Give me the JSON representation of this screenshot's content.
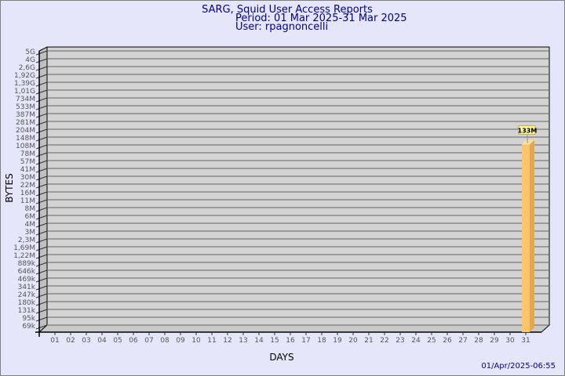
{
  "chart_data": {
    "type": "bar",
    "title": [
      "SARG, Squid User Access Reports",
      "Period: 01 Mar 2025-31 Mar 2025",
      "User: rpagnoncelli"
    ],
    "xlabel": "DAYS",
    "ylabel": "BYTES",
    "y_scale": "log",
    "ylim": [
      "69k",
      "5G"
    ],
    "y_tick_labels": [
      "5G",
      "4G",
      "2,6G",
      "1,92G",
      "1,39G",
      "1,01G",
      "734M",
      "533M",
      "387M",
      "281M",
      "204M",
      "148M",
      "108M",
      "78M",
      "57M",
      "41M",
      "30M",
      "22M",
      "16M",
      "11M",
      "8M",
      "6M",
      "4M",
      "3M",
      "2,3M",
      "1,69M",
      "1,22M",
      "889k",
      "646k",
      "469k",
      "341k",
      "247k",
      "180k",
      "131k",
      "95k",
      "69k"
    ],
    "categories": [
      "01",
      "02",
      "03",
      "04",
      "05",
      "06",
      "07",
      "08",
      "09",
      "10",
      "11",
      "12",
      "13",
      "14",
      "15",
      "16",
      "17",
      "18",
      "19",
      "20",
      "21",
      "22",
      "23",
      "24",
      "25",
      "26",
      "27",
      "28",
      "29",
      "30",
      "31"
    ],
    "bars": [
      {
        "day": "31",
        "value": 133000000,
        "label": "133M"
      }
    ],
    "grid": true,
    "colors": {
      "bar_front": "#ffc469",
      "bar_side": "#e0a850",
      "bar_top": "#ffe0a0",
      "wall": "#d3d3d3",
      "label_box": "#fff8a0"
    },
    "timestamp": "01/Apr/2025-06:55"
  }
}
